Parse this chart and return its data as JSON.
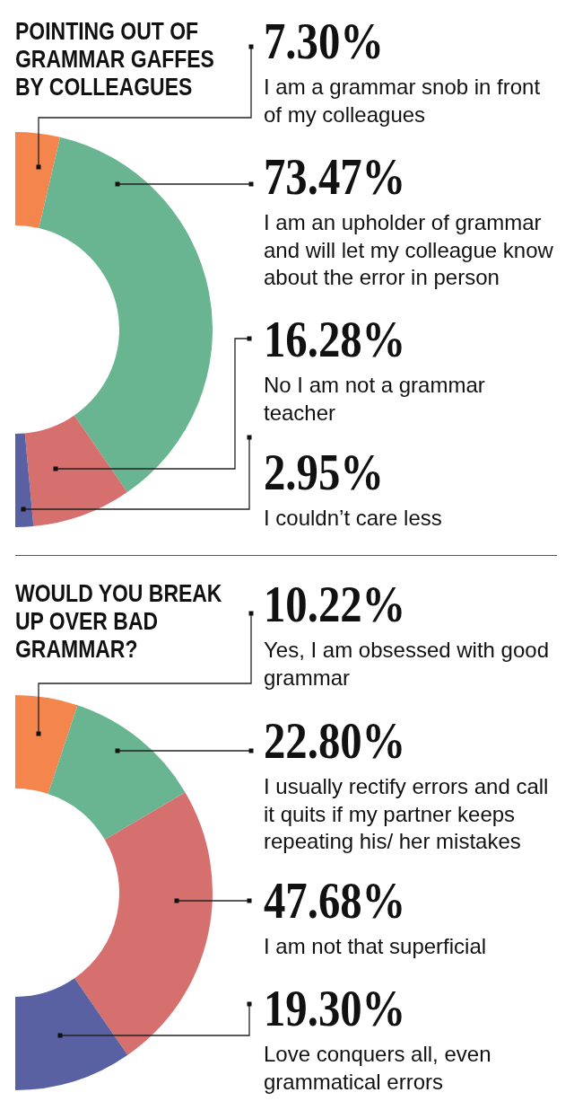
{
  "chart_data": [
    {
      "type": "donut",
      "title": "POINTING OUT OF GRAMMAR GAFFES BY COLLEAGUES",
      "categories": [
        "I am a grammar snob in front of my colleagues",
        "I am an upholder of grammar and will let my colleague know about the error in person",
        "No I am not a grammar teacher",
        "I couldn’t care less"
      ],
      "values": [
        7.3,
        73.47,
        16.28,
        2.95
      ],
      "value_labels": [
        "7.30%",
        "73.47%",
        "16.28%",
        "2.95%"
      ],
      "colors": [
        "#f4854c",
        "#69b591",
        "#d6706f",
        "#5a61a3"
      ]
    },
    {
      "type": "donut",
      "title": "WOULD YOU BREAK UP OVER BAD GRAMMAR?",
      "categories": [
        "Yes, I am obsessed with good grammar",
        "I usually rectify errors and call it quits if my partner keeps repeating his/ her mistakes",
        "I am not that superficial",
        "Love conquers all, even grammatical errors"
      ],
      "values": [
        10.22,
        22.8,
        47.68,
        19.3
      ],
      "value_labels": [
        "10.22%",
        "22.80%",
        "47.68%",
        "19.30%"
      ],
      "colors": [
        "#f4854c",
        "#69b591",
        "#d6706f",
        "#5a61a3"
      ]
    }
  ]
}
